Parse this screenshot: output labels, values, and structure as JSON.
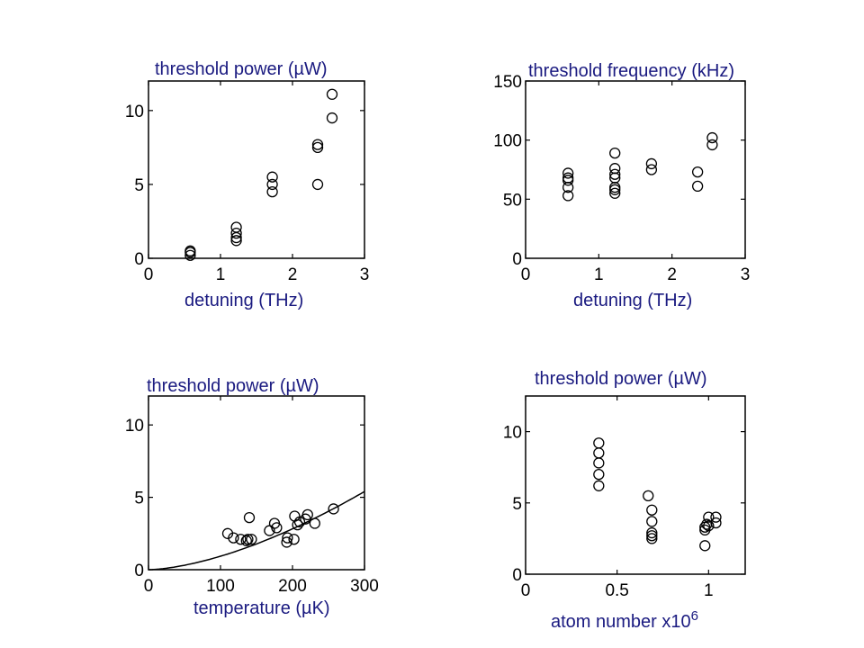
{
  "colors": {
    "label": "#1a1a80",
    "axis": "#000000",
    "marker": "#000000"
  },
  "chart_data": [
    {
      "type": "scatter",
      "title": "threshold power (µW)",
      "xlabel": "detuning (THz)",
      "ylabel": "",
      "xlim": [
        0,
        3
      ],
      "ylim": [
        0,
        12
      ],
      "xticks": [
        "0",
        "1",
        "2",
        "3"
      ],
      "yticks": [
        "0",
        "5",
        "10"
      ],
      "grid": false,
      "marker": "circle-open",
      "points": [
        [
          0.58,
          0.2
        ],
        [
          0.58,
          0.4
        ],
        [
          0.58,
          0.5
        ],
        [
          1.22,
          1.2
        ],
        [
          1.22,
          1.4
        ],
        [
          1.22,
          1.7
        ],
        [
          1.22,
          2.1
        ],
        [
          1.72,
          4.5
        ],
        [
          1.72,
          5.0
        ],
        [
          1.72,
          5.5
        ],
        [
          2.35,
          5.0
        ],
        [
          2.35,
          7.5
        ],
        [
          2.35,
          7.7
        ],
        [
          2.55,
          9.5
        ],
        [
          2.55,
          11.1
        ]
      ]
    },
    {
      "type": "scatter",
      "title": "threshold frequency (kHz)",
      "xlabel": "detuning (THz)",
      "ylabel": "",
      "xlim": [
        0,
        3
      ],
      "ylim": [
        0,
        150
      ],
      "xticks": [
        "0",
        "1",
        "2",
        "3"
      ],
      "yticks": [
        "0",
        "50",
        "100",
        "150"
      ],
      "grid": false,
      "marker": "circle-open",
      "points": [
        [
          0.58,
          53
        ],
        [
          0.58,
          60
        ],
        [
          0.58,
          66
        ],
        [
          0.58,
          68
        ],
        [
          0.58,
          72
        ],
        [
          1.22,
          55
        ],
        [
          1.22,
          58
        ],
        [
          1.22,
          60
        ],
        [
          1.22,
          68
        ],
        [
          1.22,
          71
        ],
        [
          1.22,
          76
        ],
        [
          1.22,
          89
        ],
        [
          1.72,
          75
        ],
        [
          1.72,
          80
        ],
        [
          2.35,
          61
        ],
        [
          2.35,
          73
        ],
        [
          2.55,
          96
        ],
        [
          2.55,
          102
        ]
      ]
    },
    {
      "type": "scatter",
      "title": "threshold power (µW)",
      "xlabel": "temperature (µK)",
      "ylabel": "",
      "xlim": [
        0,
        300
      ],
      "ylim": [
        0,
        12
      ],
      "xticks": [
        "0",
        "100",
        "200",
        "300"
      ],
      "yticks": [
        "0",
        "5",
        "10"
      ],
      "grid": false,
      "marker": "circle-open",
      "points": [
        [
          110,
          2.5
        ],
        [
          118,
          2.2
        ],
        [
          128,
          2.1
        ],
        [
          136,
          2.0
        ],
        [
          138,
          2.1
        ],
        [
          140,
          3.6
        ],
        [
          143,
          2.1
        ],
        [
          168,
          2.7
        ],
        [
          175,
          3.2
        ],
        [
          178,
          2.9
        ],
        [
          192,
          1.9
        ],
        [
          193,
          2.2
        ],
        [
          202,
          2.1
        ],
        [
          203,
          3.7
        ],
        [
          207,
          3.1
        ],
        [
          210,
          3.3
        ],
        [
          218,
          3.5
        ],
        [
          221,
          3.8
        ],
        [
          231,
          3.2
        ],
        [
          257,
          4.2
        ]
      ],
      "fit_curve": {
        "label": "",
        "formula": "P = 5.4 * (T/300)^1.6"
      }
    },
    {
      "type": "scatter",
      "title": "threshold power (µW)",
      "xlabel": "atom number x10",
      "xlabel_exponent": "6",
      "ylabel": "",
      "xlim": [
        0,
        1.2
      ],
      "ylim": [
        0,
        12.5
      ],
      "xticks": [
        "0",
        "0.5",
        "1"
      ],
      "yticks": [
        "0",
        "5",
        "10"
      ],
      "grid": false,
      "marker": "circle-open",
      "points": [
        [
          0.4,
          6.2
        ],
        [
          0.4,
          7.0
        ],
        [
          0.4,
          7.8
        ],
        [
          0.4,
          8.5
        ],
        [
          0.4,
          9.2
        ],
        [
          0.67,
          5.5
        ],
        [
          0.69,
          2.5
        ],
        [
          0.69,
          2.7
        ],
        [
          0.69,
          2.9
        ],
        [
          0.69,
          3.7
        ],
        [
          0.69,
          4.5
        ],
        [
          0.98,
          2.0
        ],
        [
          0.98,
          3.1
        ],
        [
          0.98,
          3.3
        ],
        [
          0.99,
          3.5
        ],
        [
          1.0,
          3.4
        ],
        [
          1.0,
          4.0
        ],
        [
          1.04,
          3.6
        ],
        [
          1.04,
          4.0
        ]
      ]
    }
  ]
}
